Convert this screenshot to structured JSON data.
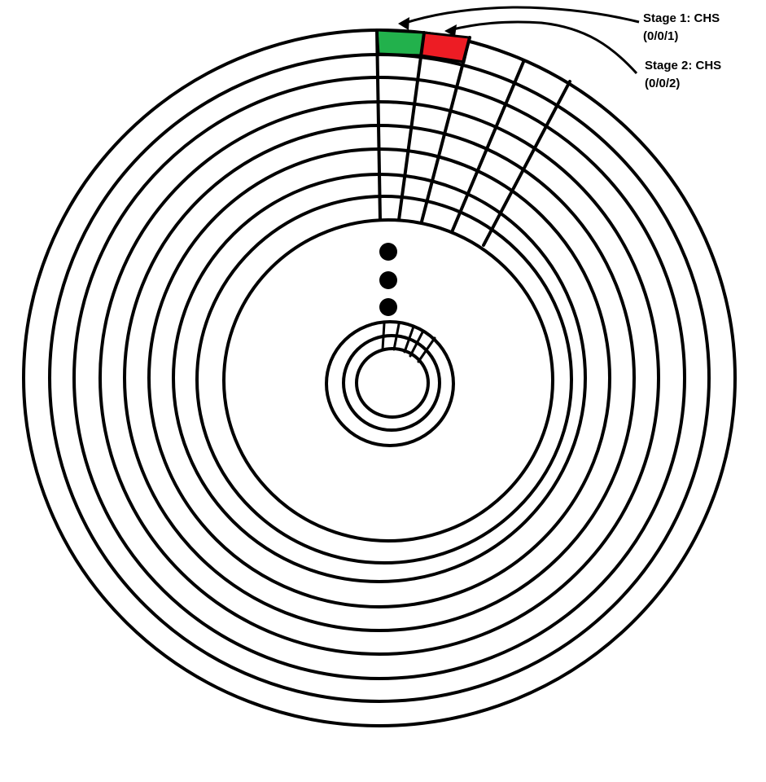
{
  "colors": {
    "stroke": "#000000",
    "background": "#ffffff",
    "stage1_fill": "#22b14c",
    "stage2_fill": "#ed1c24"
  },
  "annotations": [
    {
      "name": "stage-1-label",
      "line1": "Stage 1: CHS",
      "line2": "(0/0/1)"
    },
    {
      "name": "stage-2-label",
      "line1": "Stage 2: CHS",
      "line2": "(0/0/2)"
    }
  ]
}
